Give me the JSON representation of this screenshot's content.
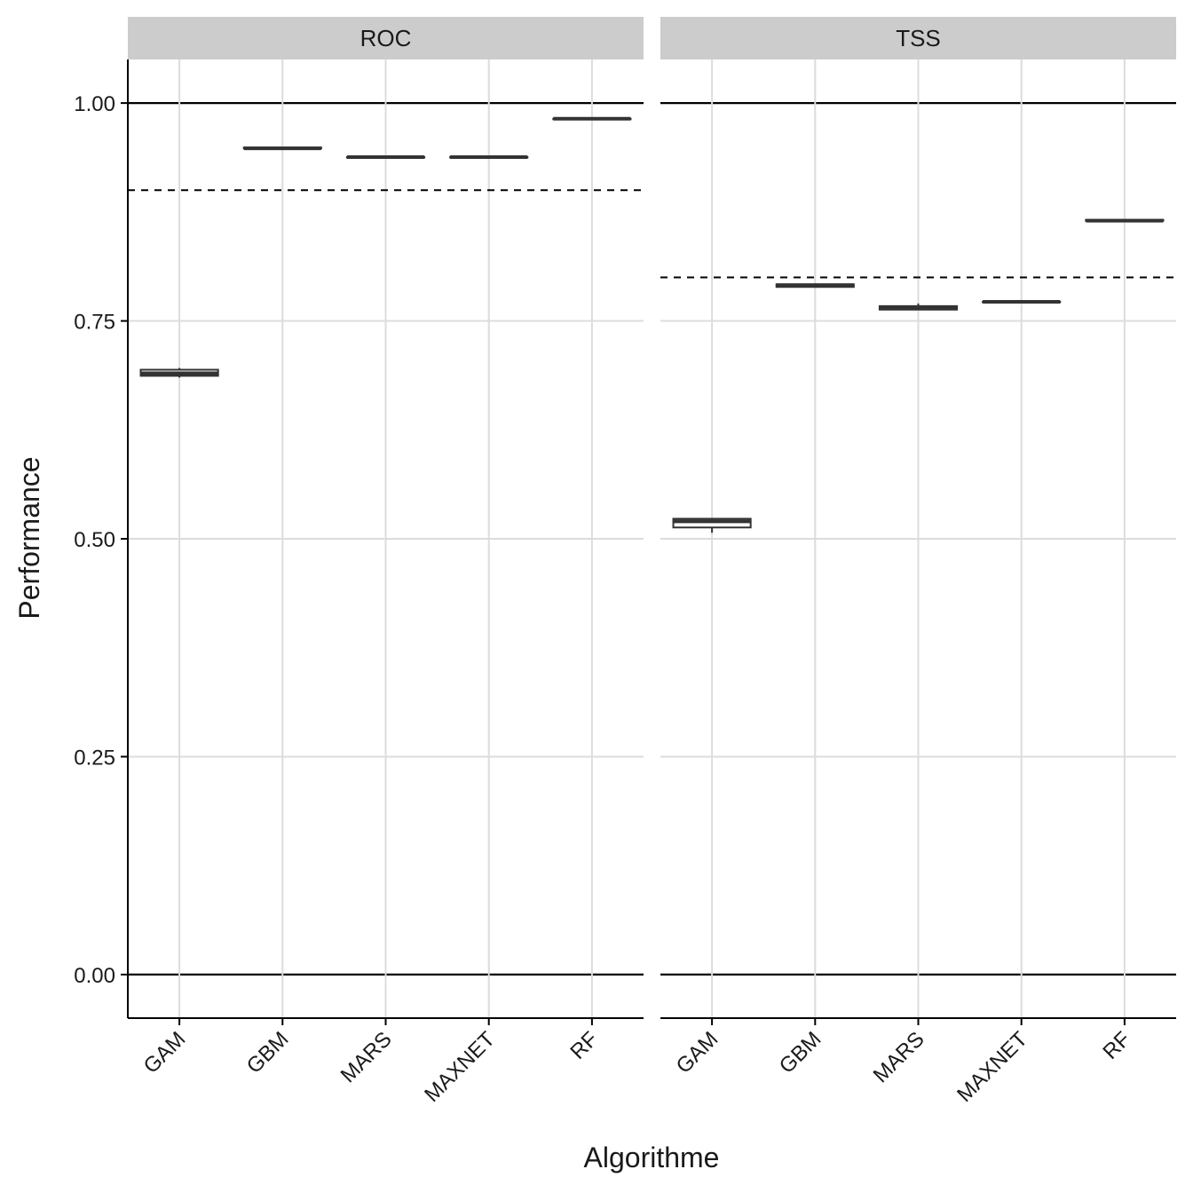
{
  "chart_data": {
    "type": "boxplot",
    "xlabel": "Algorithme",
    "ylabel": "Performance",
    "ylim": [
      -0.05,
      1.05
    ],
    "yticks": [
      0.0,
      0.25,
      0.5,
      0.75,
      1.0
    ],
    "ytick_labels": [
      "0.00",
      "0.25",
      "0.50",
      "0.75",
      "1.00"
    ],
    "reference_lines_solid": [
      0.0,
      1.0
    ],
    "categories": [
      "GAM",
      "GBM",
      "MARS",
      "MAXNET",
      "RF"
    ],
    "grid": true,
    "panels": [
      {
        "name": "ROC",
        "threshold": 0.9,
        "boxes": [
          {
            "category": "GAM",
            "min": 0.685,
            "q1": 0.687,
            "median": 0.69,
            "q3": 0.694,
            "max": 0.696
          },
          {
            "category": "GBM",
            "min": 0.947,
            "q1": 0.948,
            "median": 0.948,
            "q3": 0.949,
            "max": 0.949
          },
          {
            "category": "MARS",
            "min": 0.937,
            "q1": 0.938,
            "median": 0.938,
            "q3": 0.938,
            "max": 0.939
          },
          {
            "category": "MAXNET",
            "min": 0.937,
            "q1": 0.938,
            "median": 0.938,
            "q3": 0.938,
            "max": 0.939
          },
          {
            "category": "RF",
            "min": 0.981,
            "q1": 0.982,
            "median": 0.982,
            "q3": 0.982,
            "max": 0.983
          }
        ]
      },
      {
        "name": "TSS",
        "threshold": 0.8,
        "boxes": [
          {
            "category": "GAM",
            "min": 0.507,
            "q1": 0.513,
            "median": 0.52,
            "q3": 0.523,
            "max": 0.524
          },
          {
            "category": "GBM",
            "min": 0.789,
            "q1": 0.789,
            "median": 0.791,
            "q3": 0.792,
            "max": 0.793
          },
          {
            "category": "MARS",
            "min": 0.763,
            "q1": 0.763,
            "median": 0.765,
            "q3": 0.767,
            "max": 0.77
          },
          {
            "category": "MAXNET",
            "min": 0.771,
            "q1": 0.772,
            "median": 0.772,
            "q3": 0.772,
            "max": 0.773
          },
          {
            "category": "RF",
            "min": 0.864,
            "q1": 0.865,
            "median": 0.865,
            "q3": 0.866,
            "max": 0.866
          }
        ]
      }
    ]
  }
}
